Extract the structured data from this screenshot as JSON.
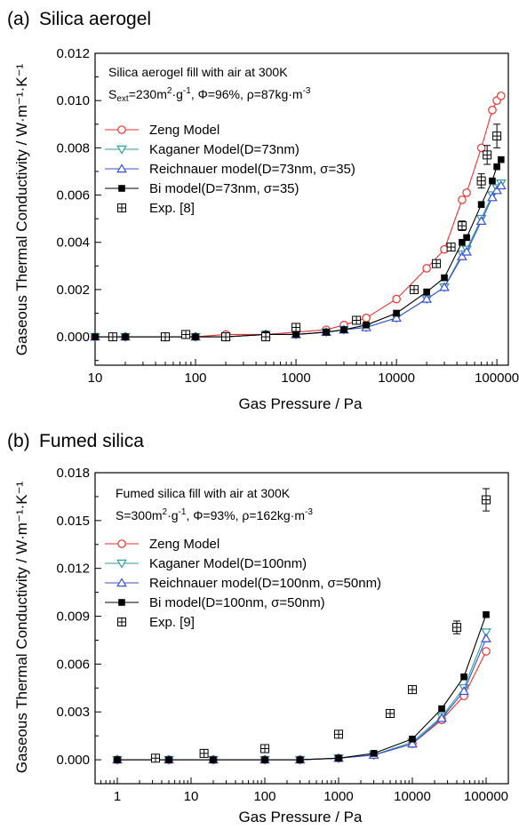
{
  "chart_data": [
    {
      "type": "scatter",
      "panel_label": "(a)",
      "title": "Silica aerogel",
      "xlabel": "Gas Pressure / Pa",
      "ylabel": "Gaseous Thermal Conductivity / W·m⁻¹·K⁻¹",
      "xscale": "log",
      "xlim": [
        10,
        130000
      ],
      "ylim": [
        -0.0012,
        0.012
      ],
      "x_ticks": [
        10,
        100,
        1000,
        10000,
        100000
      ],
      "x_tick_labels": [
        "10",
        "100",
        "1000",
        "10000",
        "100000"
      ],
      "y_ticks": [
        0,
        0.002,
        0.004,
        0.006,
        0.008,
        0.01,
        0.012
      ],
      "y_tick_labels": [
        "0.000",
        "0.002",
        "0.004",
        "0.006",
        "0.008",
        "0.010",
        "0.012"
      ],
      "annotation": {
        "line1": "Silica aerogel fill with air at 300K",
        "line2_s": "S",
        "line2_sub": "ext",
        "line2_a": "=230m",
        "line2_sup1": "2",
        "line2_b": "·g",
        "line2_sup2": "-1",
        "line2_c": ", Φ=96%, ρ=87kg·m",
        "line2_sup3": "-3"
      },
      "legend_position": "upper-left",
      "series": [
        {
          "name": "Zeng Model",
          "color": "#e8322f",
          "marker": "open-circle",
          "line": true,
          "x": [
            10,
            20,
            50,
            100,
            200,
            500,
            1000,
            2000,
            3000,
            5000,
            10000,
            20000,
            30000,
            45000,
            50000,
            70000,
            90000,
            100000,
            110000
          ],
          "y": [
            0.0,
            0.0,
            0.0,
            0.0,
            0.0001,
            0.0001,
            0.0002,
            0.0003,
            0.0005,
            0.0008,
            0.0016,
            0.0029,
            0.0037,
            0.0058,
            0.0061,
            0.008,
            0.0096,
            0.01,
            0.0102
          ]
        },
        {
          "name": "Kaganer Model(D=73nm)",
          "color": "#2e9ea0",
          "marker": "open-triangle-down",
          "line": true,
          "x": [
            10,
            20,
            50,
            100,
            200,
            500,
            1000,
            2000,
            3000,
            5000,
            10000,
            20000,
            30000,
            45000,
            50000,
            70000,
            90000,
            100000,
            110000
          ],
          "y": [
            0.0,
            0.0,
            0.0,
            0.0,
            0.0,
            0.0001,
            0.0001,
            0.0002,
            0.0003,
            0.0004,
            0.0008,
            0.0016,
            0.0021,
            0.0035,
            0.0037,
            0.005,
            0.006,
            0.0063,
            0.0065
          ]
        },
        {
          "name": "Reichnauer model(D=73nm, σ=35)",
          "color": "#3a4fd6",
          "marker": "open-triangle-up",
          "line": true,
          "x": [
            10,
            20,
            50,
            100,
            200,
            500,
            1000,
            2000,
            3000,
            5000,
            10000,
            20000,
            30000,
            45000,
            50000,
            70000,
            90000,
            100000,
            110000
          ],
          "y": [
            0.0,
            0.0,
            0.0,
            0.0,
            0.0,
            0.0001,
            0.0001,
            0.0002,
            0.0003,
            0.0004,
            0.0008,
            0.0016,
            0.0021,
            0.0034,
            0.0036,
            0.0049,
            0.0059,
            0.0062,
            0.0064
          ]
        },
        {
          "name": "Bi model(D=73nm, σ=35)",
          "color": "#000000",
          "marker": "filled-square",
          "line": true,
          "x": [
            10,
            20,
            50,
            100,
            200,
            500,
            1000,
            2000,
            3000,
            5000,
            10000,
            20000,
            30000,
            45000,
            50000,
            70000,
            90000,
            100000,
            110000
          ],
          "y": [
            0.0,
            0.0,
            0.0,
            0.0,
            0.0,
            0.0001,
            0.0001,
            0.0002,
            0.0003,
            0.0005,
            0.001,
            0.0019,
            0.0025,
            0.004,
            0.0042,
            0.0056,
            0.0066,
            0.0072,
            0.0075
          ]
        },
        {
          "name": "Exp. [8]",
          "color": "#000000",
          "marker": "boxed-plus",
          "line": false,
          "x": [
            15,
            50,
            80,
            200,
            500,
            1000,
            4000,
            15000,
            25000,
            35000,
            45000,
            70000,
            80000,
            100000
          ],
          "y": [
            0.0,
            0.0,
            0.0001,
            0.0,
            0.0,
            0.0004,
            0.0007,
            0.002,
            0.0031,
            0.0038,
            0.0047,
            0.0066,
            0.0077,
            0.0085
          ],
          "yerr": [
            0,
            0,
            0,
            0,
            0,
            0,
            0,
            0,
            0,
            0,
            0.0002,
            0.0003,
            0.0004,
            0.0005
          ]
        }
      ]
    },
    {
      "type": "scatter",
      "panel_label": "(b)",
      "title": "Fumed silica",
      "xlabel": "Gas Pressure / Pa",
      "ylabel": "Gaseous Thermal Conductivity / W·m⁻¹·K⁻¹",
      "xscale": "log",
      "xlim": [
        0.5,
        200000
      ],
      "ylim": [
        -0.0015,
        0.018
      ],
      "x_ticks": [
        1,
        10,
        100,
        1000,
        10000,
        100000
      ],
      "x_tick_labels": [
        "1",
        "10",
        "100",
        "1000",
        "10000",
        "100000"
      ],
      "y_ticks": [
        0,
        0.003,
        0.006,
        0.009,
        0.012,
        0.015,
        0.018
      ],
      "y_tick_labels": [
        "0.000",
        "0.003",
        "0.006",
        "0.009",
        "0.012",
        "0.015",
        "0.018"
      ],
      "annotation": {
        "line1": "Fumed silica fill with air at 300K",
        "line2_s": "S",
        "line2_sub": "",
        "line2_a": "=300m",
        "line2_sup1": "2",
        "line2_b": "·g",
        "line2_sup2": "-1",
        "line2_c": ", Φ=93%, ρ=162kg·m",
        "line2_sup3": "-3"
      },
      "legend_position": "upper-left",
      "series": [
        {
          "name": "Zeng Model",
          "color": "#e8322f",
          "marker": "open-circle",
          "line": true,
          "x": [
            1,
            5,
            20,
            100,
            300,
            1000,
            3000,
            10000,
            25000,
            50000,
            100000
          ],
          "y": [
            0.0,
            0.0,
            0.0,
            0.0,
            0.0,
            0.0001,
            0.0003,
            0.001,
            0.0025,
            0.004,
            0.0068
          ]
        },
        {
          "name": "Kaganer Model(D=100nm)",
          "color": "#2e9ea0",
          "marker": "open-triangle-down",
          "line": true,
          "x": [
            1,
            5,
            20,
            100,
            300,
            1000,
            3000,
            10000,
            25000,
            50000,
            100000
          ],
          "y": [
            0.0,
            0.0,
            0.0,
            0.0,
            0.0,
            0.0001,
            0.0003,
            0.0011,
            0.0027,
            0.0045,
            0.008
          ]
        },
        {
          "name": "Reichnauer model(D=100nm, σ=50nm)",
          "color": "#3a4fd6",
          "marker": "open-triangle-up",
          "line": true,
          "x": [
            1,
            5,
            20,
            100,
            300,
            1000,
            3000,
            10000,
            25000,
            50000,
            100000
          ],
          "y": [
            0.0,
            0.0,
            0.0,
            0.0,
            0.0,
            0.0001,
            0.0003,
            0.001,
            0.0026,
            0.0043,
            0.0076
          ]
        },
        {
          "name": "Bi model(D=100nm, σ=50nm)",
          "color": "#000000",
          "marker": "filled-square",
          "line": true,
          "x": [
            1,
            5,
            20,
            100,
            300,
            1000,
            3000,
            10000,
            25000,
            50000,
            100000
          ],
          "y": [
            0.0,
            0.0,
            0.0,
            0.0,
            0.0,
            0.0001,
            0.0004,
            0.0013,
            0.0032,
            0.0052,
            0.0091
          ]
        },
        {
          "name": "Exp. [9]",
          "color": "#000000",
          "marker": "boxed-plus",
          "line": false,
          "x": [
            3.3,
            15,
            100,
            1000,
            5000,
            10000,
            40000,
            100000
          ],
          "y": [
            0.0001,
            0.0004,
            0.0007,
            0.0016,
            0.0029,
            0.0044,
            0.0083,
            0.0163
          ],
          "yerr": [
            0,
            0,
            0,
            0,
            0,
            0,
            0.0004,
            0.0007
          ]
        }
      ]
    }
  ]
}
